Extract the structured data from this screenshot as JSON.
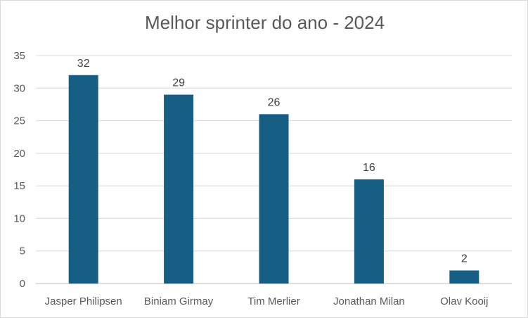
{
  "chart_data": {
    "type": "bar",
    "title": "Melhor sprinter do ano - 2024",
    "categories": [
      "Jasper Philipsen",
      "Biniam Girmay",
      "Tim Merlier",
      "Jonathan Milan",
      "Olav Kooij"
    ],
    "values": [
      32,
      29,
      26,
      16,
      2
    ],
    "ylim": [
      0,
      35
    ],
    "yticks": [
      0,
      5,
      10,
      15,
      20,
      25,
      30,
      35
    ],
    "xlabel": "",
    "ylabel": "",
    "grid": true,
    "legend": "none",
    "colors": {
      "bar": "#165e83",
      "grid": "#d9d9d9",
      "axis": "#bfbfbf"
    }
  }
}
